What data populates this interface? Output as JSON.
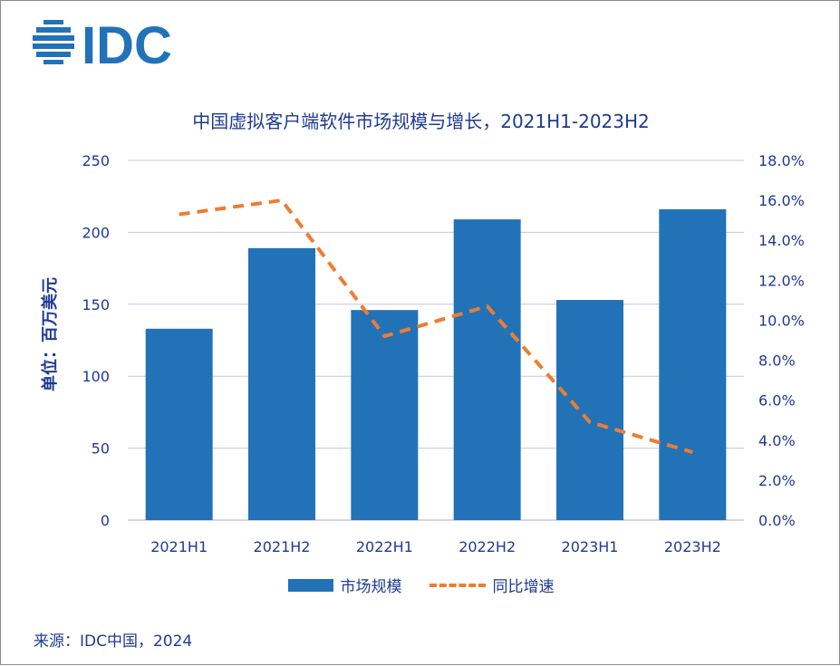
{
  "logo": {
    "text": "IDC",
    "color": "#2272b8"
  },
  "chart_data": {
    "type": "bar",
    "title": "中国虚拟客户端软件市场规模与增长，2021H1-2023H2",
    "ylabel": "单位：百万美元",
    "categories": [
      "2021H1",
      "2021H2",
      "2022H1",
      "2022H2",
      "2023H1",
      "2023H2"
    ],
    "series": [
      {
        "name": "市场规模",
        "type": "bar",
        "axis": "left",
        "color": "#2272b8",
        "values": [
          133,
          189,
          146,
          209,
          153,
          216
        ]
      },
      {
        "name": "同比增速",
        "type": "line",
        "style": "dashed",
        "axis": "right",
        "color": "#ed7d31",
        "values": [
          15.3,
          16.0,
          9.2,
          10.7,
          4.9,
          3.4
        ]
      }
    ],
    "ylim": [
      0,
      250
    ],
    "yticks": [
      "0",
      "50",
      "100",
      "150",
      "200",
      "250"
    ],
    "y2lim": [
      0,
      18
    ],
    "y2ticks": [
      "0.0%",
      "2.0%",
      "4.0%",
      "6.0%",
      "8.0%",
      "10.0%",
      "12.0%",
      "14.0%",
      "16.0%",
      "18.0%"
    ],
    "grid": true,
    "legend": "bottom"
  },
  "source": "来源：IDC中国，2024"
}
